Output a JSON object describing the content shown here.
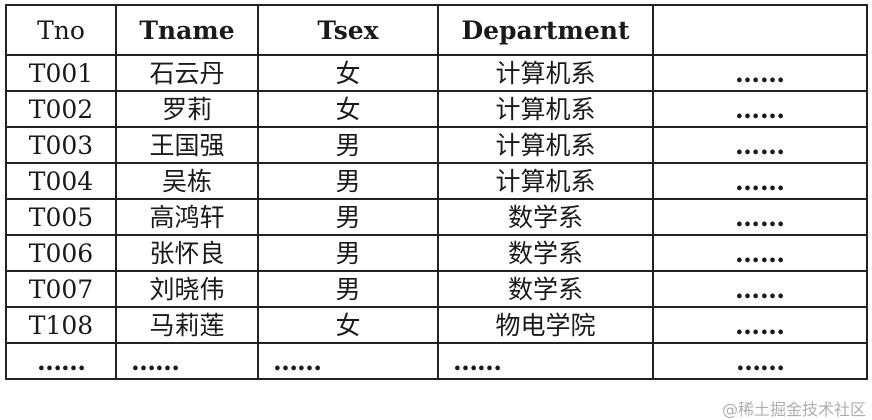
{
  "table": {
    "headers": [
      "Tno",
      "Tname",
      "Tsex",
      "Department",
      ""
    ],
    "rows": [
      [
        "T001",
        "石云丹",
        "女",
        "计算机系",
        "……"
      ],
      [
        "T002",
        "罗莉",
        "女",
        "计算机系",
        "……"
      ],
      [
        "T003",
        "王国强",
        "男",
        "计算机系",
        "……"
      ],
      [
        "T004",
        "吴栋",
        "男",
        "计算机系",
        "……"
      ],
      [
        "T005",
        "高鸿轩",
        "男",
        "数学系",
        "……"
      ],
      [
        "T006",
        "张怀良",
        "男",
        "数学系",
        "……"
      ],
      [
        "T007",
        "刘晓伟",
        "男",
        "数学系",
        "……"
      ],
      [
        "T108",
        "马莉莲",
        "女",
        "物电学院",
        "……"
      ],
      [
        "……",
        "……",
        "……",
        "……",
        "……"
      ]
    ]
  },
  "watermark": "@稀土掘金技术社区"
}
